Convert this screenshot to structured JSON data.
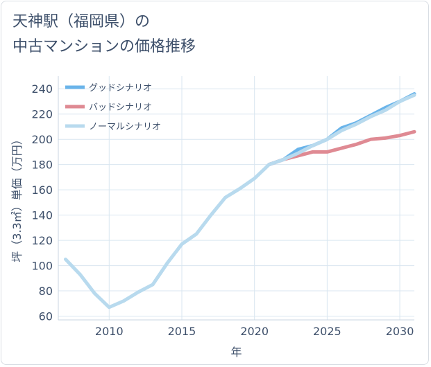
{
  "title": {
    "line1": "天神駅（福岡県）の",
    "line2": "中古マンションの価格推移"
  },
  "chart_data": {
    "type": "line",
    "title": "天神駅（福岡県）の中古マンションの価格推移",
    "xlabel": "年",
    "ylabel": "坪（3.3㎡）単価（万円）",
    "xlim": [
      2006.5,
      2031
    ],
    "ylim": [
      57,
      250
    ],
    "xticks": [
      2010,
      2015,
      2020,
      2025,
      2030
    ],
    "yticks": [
      60,
      80,
      100,
      120,
      140,
      160,
      180,
      200,
      220,
      240
    ],
    "grid": true,
    "legend_position": "top-left",
    "series": [
      {
        "name": "グッドシナリオ",
        "color": "#6ab4ea",
        "x": [
          2021,
          2022,
          2023,
          2024,
          2025,
          2026,
          2027,
          2028,
          2029,
          2030,
          2031
        ],
        "y": [
          180,
          184,
          192,
          195,
          200,
          209,
          213,
          219,
          225,
          230,
          236
        ]
      },
      {
        "name": "バッドシナリオ",
        "color": "#df8a93",
        "x": [
          2021,
          2022,
          2023,
          2024,
          2025,
          2026,
          2027,
          2028,
          2029,
          2030,
          2031
        ],
        "y": [
          180,
          184,
          187,
          190,
          190,
          193,
          196,
          200,
          201,
          203,
          206
        ]
      },
      {
        "name": "ノーマルシナリオ",
        "color": "#b8daee",
        "x": [
          2007,
          2008,
          2009,
          2010,
          2011,
          2012,
          2013,
          2014,
          2015,
          2016,
          2017,
          2018,
          2019,
          2020,
          2021,
          2022,
          2023,
          2024,
          2025,
          2026,
          2027,
          2028,
          2029,
          2030,
          2031
        ],
        "y": [
          105,
          93,
          78,
          67,
          72,
          79,
          85,
          102,
          117,
          125,
          140,
          154,
          161,
          169,
          180,
          184,
          189,
          195,
          200,
          207,
          212,
          218,
          223,
          230,
          235
        ]
      }
    ]
  }
}
